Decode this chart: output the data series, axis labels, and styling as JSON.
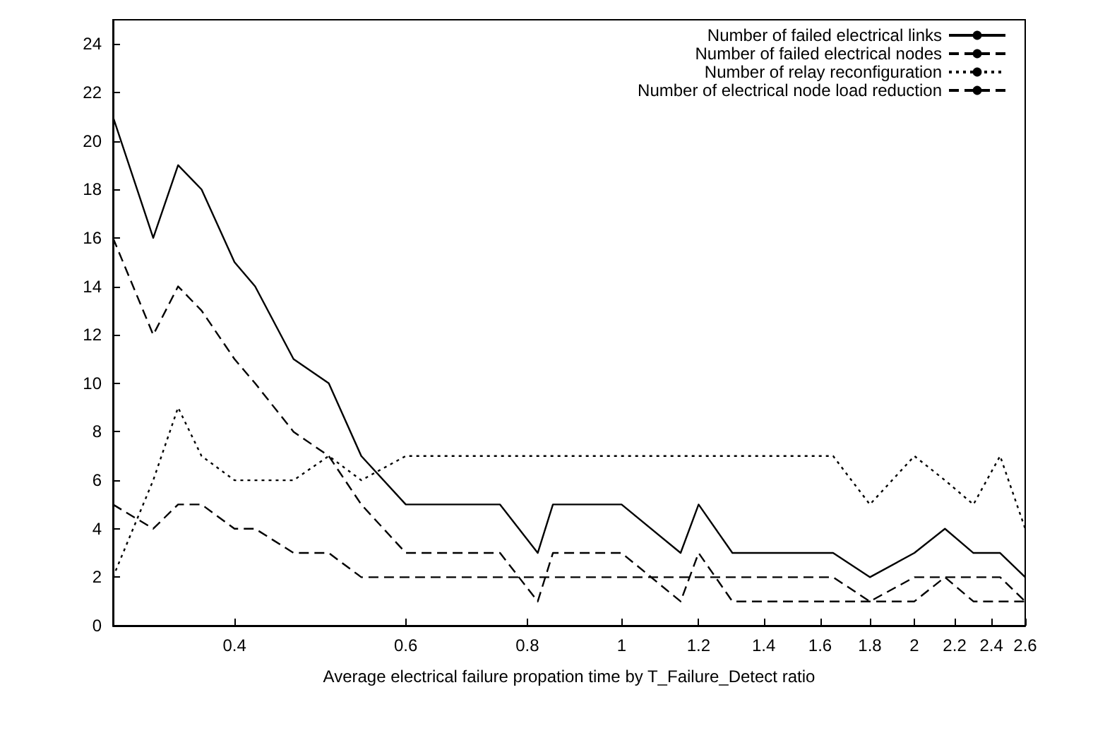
{
  "chart_data": {
    "type": "line",
    "xlabel": "Average electrical failure propation time by T_Failure_Detect ratio",
    "x": [
      0.3,
      0.33,
      0.35,
      0.37,
      0.4,
      0.42,
      0.46,
      0.5,
      0.54,
      0.6,
      0.75,
      0.82,
      0.85,
      1,
      1.15,
      1.2,
      1.3,
      1.65,
      1.8,
      2,
      2.15,
      2.3,
      2.45,
      2.6
    ],
    "series": [
      {
        "name": "Number of failed electrical links",
        "color": "#000000",
        "line_style": "solid",
        "values": [
          21,
          16,
          19,
          18,
          15,
          14,
          11,
          10,
          7,
          5,
          5,
          3,
          5,
          5,
          3,
          5,
          3,
          3,
          2,
          3,
          4,
          3,
          3,
          2
        ]
      },
      {
        "name": "Number of failed electrical nodes",
        "color": "#000000",
        "line_style": "dashed",
        "values": [
          16,
          12,
          14,
          13,
          11,
          10,
          8,
          7,
          5,
          3,
          3,
          1,
          3,
          3,
          1,
          3,
          1,
          1,
          1,
          1,
          2,
          1,
          1,
          1
        ]
      },
      {
        "name": "Number of relay reconfiguration",
        "color": "#000000",
        "line_style": "dotted",
        "values": [
          2,
          6,
          9,
          7,
          6,
          6,
          6,
          7,
          6,
          7,
          7,
          7,
          7,
          7,
          7,
          7,
          7,
          7,
          5,
          7,
          6,
          5,
          7,
          4
        ]
      },
      {
        "name": "Number of electrical node load reduction",
        "color": "#000000",
        "line_style": "dashed",
        "values": [
          5,
          4,
          5,
          5,
          4,
          4,
          3,
          3,
          2,
          2,
          2,
          2,
          2,
          2,
          2,
          2,
          2,
          2,
          1,
          2,
          2,
          2,
          2,
          1
        ]
      }
    ],
    "log": "x",
    "xlim": [
      0.3,
      2.6
    ],
    "xticks": [
      0.4,
      0.6,
      0.8,
      1,
      1.2,
      1.4,
      1.6,
      1.8,
      2,
      2.2,
      2.4,
      2.6
    ],
    "ylim": [
      0,
      25
    ],
    "yticks": [
      0,
      2,
      4,
      6,
      8,
      10,
      12,
      14,
      16,
      18,
      20,
      22,
      24
    ],
    "grid": false,
    "legend": "top right",
    "marker": "none"
  }
}
